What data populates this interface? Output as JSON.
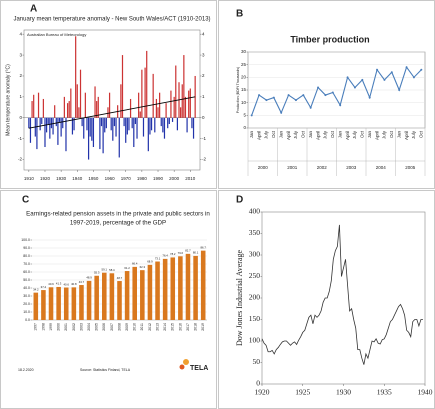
{
  "chart_data": [
    {
      "panel": "A",
      "type": "bar",
      "title": "January mean temperature anomaly - New South Wales/ACT (1910-2013)",
      "subtitle": "Australian Bureau of Meteorology",
      "y_label": "Mean temperature anomaly (°C)",
      "x": [
        1910,
        1911,
        1912,
        1913,
        1914,
        1915,
        1916,
        1917,
        1918,
        1919,
        1920,
        1921,
        1922,
        1923,
        1924,
        1925,
        1926,
        1927,
        1928,
        1929,
        1930,
        1931,
        1932,
        1933,
        1934,
        1935,
        1936,
        1937,
        1938,
        1939,
        1940,
        1941,
        1942,
        1943,
        1944,
        1945,
        1946,
        1947,
        1948,
        1949,
        1950,
        1951,
        1952,
        1953,
        1954,
        1955,
        1956,
        1957,
        1958,
        1959,
        1960,
        1961,
        1962,
        1963,
        1964,
        1965,
        1966,
        1967,
        1968,
        1969,
        1970,
        1971,
        1972,
        1973,
        1974,
        1975,
        1976,
        1977,
        1978,
        1979,
        1980,
        1981,
        1982,
        1983,
        1984,
        1985,
        1986,
        1987,
        1988,
        1989,
        1990,
        1991,
        1992,
        1993,
        1994,
        1995,
        1996,
        1997,
        1998,
        1999,
        2000,
        2001,
        2002,
        2003,
        2004,
        2005,
        2006,
        2007,
        2008,
        2009,
        2010,
        2011,
        2012,
        2013
      ],
      "values": [
        -0.5,
        -1.2,
        0.8,
        1.1,
        -0.9,
        -1.5,
        1.2,
        -0.6,
        -0.3,
        0.9,
        -1.4,
        -0.7,
        -0.3,
        -1.0,
        -0.5,
        -0.8,
        0.6,
        -0.4,
        -1.3,
        -0.2,
        -0.9,
        -0.5,
        1.0,
        -1.6,
        0.7,
        0.8,
        1.4,
        -0.8,
        -0.6,
        3.9,
        1.6,
        0.5,
        2.3,
        -0.4,
        -1.0,
        1.2,
        -0.6,
        -2.0,
        -0.9,
        -1.1,
        -1.4,
        1.5,
        0.8,
        1.0,
        -1.5,
        -0.4,
        -1.7,
        -0.7,
        -0.5,
        0.5,
        1.2,
        -0.6,
        -1.1,
        -0.4,
        -0.9,
        0.6,
        -1.9,
        1.6,
        3.0,
        -0.4,
        -1.2,
        -0.8,
        -0.6,
        0.9,
        -0.5,
        -1.4,
        -0.3,
        -1.0,
        1.2,
        0.3,
        2.3,
        -0.9,
        2.4,
        3.2,
        -1.6,
        -0.8,
        -0.6,
        2.1,
        -0.7,
        0.9,
        0.5,
        1.2,
        -0.4,
        -0.7,
        -1.0,
        0.7,
        -0.5,
        -0.3,
        1.3,
        -0.2,
        1.0,
        2.5,
        -0.6,
        1.7,
        0.5,
        1.6,
        3.0,
        1.0,
        -0.7,
        1.3,
        1.4,
        -0.5,
        -1.0,
        2.0
      ],
      "colors": {
        "positive": "#cc3333",
        "negative": "#2233aa"
      },
      "trend": {
        "x": [
          1910,
          2013
        ],
        "values": [
          -0.5,
          1.0
        ],
        "color": "#000000"
      },
      "xlim": [
        1907,
        2016
      ],
      "xticks": [
        1910,
        1920,
        1930,
        1940,
        1950,
        1960,
        1970,
        1980,
        1990,
        2000,
        2010
      ],
      "ylim": [
        -2.5,
        4.2
      ],
      "yticks": [
        -2,
        -1,
        0,
        1,
        2,
        3,
        4
      ],
      "right_axis": true,
      "grid": false
    },
    {
      "panel": "B",
      "type": "line",
      "title": "Timber production",
      "y_label": "Production (BDFt Thousands)",
      "categories": [
        "Jan",
        "April",
        "July",
        "Oct",
        "Jan",
        "April",
        "July",
        "Oct",
        "Jan",
        "April",
        "July",
        "Oct",
        "Jan",
        "April",
        "July",
        "Oct",
        "Jan",
        "April",
        "July",
        "Oct",
        "Jan",
        "April",
        "July",
        "Oct"
      ],
      "groups": [
        "2000",
        "2001",
        "2002",
        "2003",
        "2004",
        "2005"
      ],
      "series": [
        {
          "name": "Timber production",
          "color": "#4a7ebb",
          "values": [
            5,
            13,
            11,
            12,
            6,
            13,
            11,
            13,
            8,
            16,
            13,
            14,
            9,
            20,
            16,
            19,
            12,
            23,
            19,
            22,
            15,
            24,
            20,
            23
          ]
        }
      ],
      "ylim": [
        0,
        30
      ],
      "yticks": [
        0,
        5,
        10,
        15,
        20,
        25,
        30
      ],
      "grid": true
    },
    {
      "panel": "C",
      "type": "bar",
      "title_lines": [
        "Earnings-related pension assets in the private and public sectors in",
        "1997-2019, percentage of the GDP"
      ],
      "categories": [
        "1997",
        "1998",
        "1999",
        "2000",
        "2001",
        "2002",
        "2003",
        "2004",
        "2005",
        "2006",
        "2007",
        "2008",
        "2009",
        "2010",
        "2011",
        "2012",
        "2013",
        "2014",
        "2015",
        "2016",
        "2017",
        "2018",
        "2019"
      ],
      "values": [
        34.2,
        37.4,
        40.9,
        41.3,
        40.6,
        40.8,
        43.7,
        48.9,
        55.3,
        59.1,
        58.4,
        48.7,
        61.2,
        66.4,
        62.3,
        68.9,
        73.1,
        76.4,
        78.2,
        79.6,
        82.7,
        80.1,
        86.7
      ],
      "color": "#d9781e",
      "data_labels": true,
      "ylim": [
        0,
        100
      ],
      "yticks": [
        {
          "value": 0,
          "label": "0.0"
        },
        {
          "value": 10,
          "label": "10.0"
        },
        {
          "value": 20,
          "label": "20.0"
        },
        {
          "value": 30,
          "label": "30.0"
        },
        {
          "value": 40,
          "label": "40.0"
        },
        {
          "value": 50,
          "label": "50.0"
        },
        {
          "value": 60,
          "label": "60.0"
        },
        {
          "value": 70,
          "label": "70.0"
        },
        {
          "value": 80,
          "label": "80.0"
        },
        {
          "value": 90,
          "label": "90.0"
        },
        {
          "value": 100,
          "label": "100.0"
        }
      ],
      "grid": true,
      "date": "18.2.2020",
      "source": "Source: Statistics Finland, TELA",
      "logo": "TELA"
    },
    {
      "panel": "D",
      "type": "line",
      "y_label": "Dow Jones Industrial Average",
      "x": [
        1920,
        1920.25,
        1920.5,
        1920.75,
        1921,
        1921.25,
        1921.5,
        1921.75,
        1922,
        1922.25,
        1922.5,
        1922.75,
        1923,
        1923.25,
        1923.5,
        1923.75,
        1924,
        1924.25,
        1924.5,
        1924.75,
        1925,
        1925.25,
        1925.5,
        1925.75,
        1926,
        1926.25,
        1926.5,
        1926.75,
        1927,
        1927.25,
        1927.5,
        1927.75,
        1928,
        1928.25,
        1928.5,
        1928.75,
        1929,
        1929.25,
        1929.5,
        1929.75,
        1930,
        1930.25,
        1930.5,
        1930.75,
        1931,
        1931.25,
        1931.5,
        1931.75,
        1932,
        1932.25,
        1932.5,
        1932.75,
        1933,
        1933.25,
        1933.5,
        1933.75,
        1934,
        1934.25,
        1934.5,
        1934.75,
        1935,
        1935.25,
        1935.5,
        1935.75,
        1936,
        1936.25,
        1936.5,
        1936.75,
        1937,
        1937.25,
        1937.5,
        1937.75,
        1938,
        1938.25,
        1938.5,
        1938.75,
        1939,
        1939.25,
        1939.5,
        1939.75
      ],
      "series": [
        {
          "name": "Dow Jones Industrial Average",
          "color": "#333333",
          "values": [
            105,
            95,
            90,
            75,
            75,
            78,
            70,
            80,
            85,
            92,
            98,
            100,
            100,
            95,
            90,
            95,
            98,
            92,
            102,
            110,
            120,
            125,
            140,
            155,
            160,
            140,
            160,
            155,
            160,
            170,
            190,
            200,
            200,
            215,
            240,
            290,
            310,
            320,
            370,
            250,
            270,
            290,
            230,
            170,
            175,
            150,
            130,
            80,
            80,
            60,
            45,
            70,
            60,
            80,
            100,
            98,
            105,
            95,
            93,
            103,
            105,
            115,
            130,
            145,
            150,
            160,
            170,
            180,
            185,
            175,
            160,
            125,
            120,
            110,
            145,
            150,
            150,
            135,
            150,
            150
          ]
        }
      ],
      "xlim": [
        1920,
        1940
      ],
      "xticks": [
        1920,
        1925,
        1930,
        1935,
        1940
      ],
      "ylim": [
        0,
        400
      ],
      "yticks": [
        0,
        50,
        100,
        150,
        200,
        250,
        300,
        350,
        400
      ],
      "grid": false
    }
  ]
}
